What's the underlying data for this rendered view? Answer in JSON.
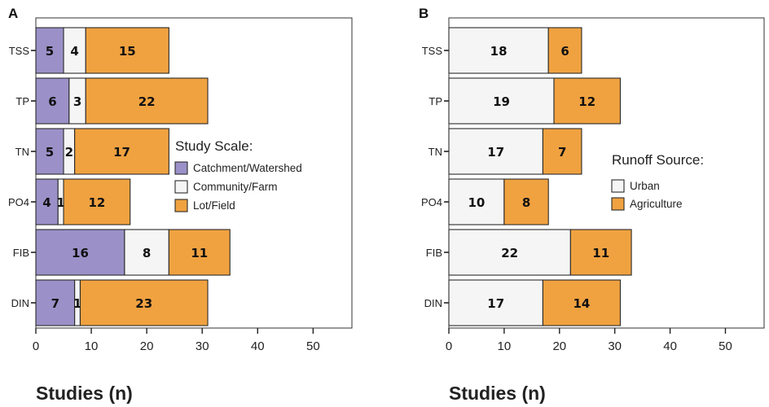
{
  "chart_data": [
    {
      "panel": "A",
      "type": "bar",
      "orientation": "horizontal",
      "stacked": true,
      "categories": [
        "TSS",
        "TP",
        "TN",
        "PO4",
        "FIB",
        "DIN"
      ],
      "series": [
        {
          "name": "Catchment/Watershed",
          "color": "#9b91c8",
          "values": [
            5,
            6,
            5,
            4,
            16,
            7
          ]
        },
        {
          "name": "Community/Farm",
          "color": "#f5f5f5",
          "values": [
            4,
            3,
            2,
            1,
            8,
            1
          ]
        },
        {
          "name": "Lot/Field",
          "color": "#f0a240",
          "values": [
            15,
            22,
            17,
            12,
            11,
            23
          ]
        }
      ],
      "legend_title": "Study Scale:",
      "legend_position": "center-right",
      "xlabel": "Studies (n)",
      "xlim": [
        0,
        57
      ],
      "xticks": [
        0,
        10,
        20,
        30,
        40,
        50
      ]
    },
    {
      "panel": "B",
      "type": "bar",
      "orientation": "horizontal",
      "stacked": true,
      "categories": [
        "TSS",
        "TP",
        "TN",
        "PO4",
        "FIB",
        "DIN"
      ],
      "series": [
        {
          "name": "Urban",
          "color": "#f5f5f5",
          "values": [
            18,
            19,
            17,
            10,
            22,
            17
          ]
        },
        {
          "name": "Agriculture",
          "color": "#f0a240",
          "values": [
            6,
            12,
            7,
            8,
            11,
            14
          ]
        }
      ],
      "legend_title": "Runoff Source:",
      "legend_position": "center-right",
      "xlabel": "Studies (n)",
      "xlim": [
        0,
        57
      ],
      "xticks": [
        0,
        10,
        20,
        30,
        40,
        50
      ]
    }
  ]
}
